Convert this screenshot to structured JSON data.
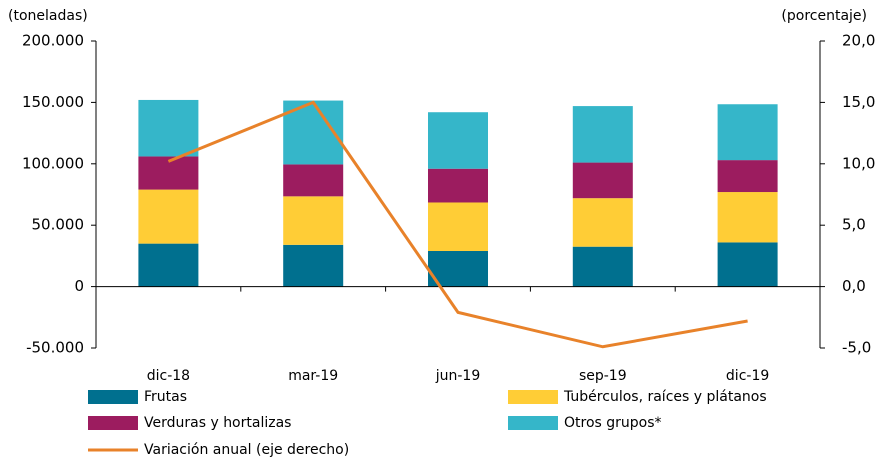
{
  "chart_data": {
    "type": "bar",
    "stacked": true,
    "y_label": "(toneladas)",
    "y2_label": "(porcentaje)",
    "categories": [
      "dic-18",
      "mar-19",
      "jun-19",
      "sep-19",
      "dic-19"
    ],
    "series": [
      {
        "name": "Frutas",
        "color": "#00708f",
        "values": [
          35000,
          34000,
          29000,
          32500,
          36000
        ]
      },
      {
        "name": "Tubérculos, raíces y plátanos",
        "color": "#ffcd36",
        "values": [
          44000,
          39500,
          39500,
          39500,
          41000
        ]
      },
      {
        "name": "Verduras y hortalizas",
        "color": "#9c1c5f",
        "values": [
          27000,
          26000,
          27500,
          29000,
          26000
        ]
      },
      {
        "name": "Otros grupos*",
        "color": "#35b6c9",
        "values": [
          46000,
          52000,
          46000,
          46000,
          45500
        ]
      },
      {
        "name": "Variación anual (eje derecho)",
        "type": "line",
        "axis": "y2",
        "color": "#e8822a",
        "values": [
          10.2,
          15.0,
          -2.1,
          -4.9,
          -2.8
        ]
      }
    ],
    "ylim": [
      -50000,
      200000
    ],
    "yticks": [
      {
        "value": -50000,
        "label": "-50.000"
      },
      0,
      {
        "value": 50000,
        "label": "50.000"
      },
      {
        "value": 100000,
        "label": "100.000"
      },
      {
        "value": 150000,
        "label": "150.000"
      },
      {
        "value": 200000,
        "label": "200.000"
      }
    ],
    "y2lim": [
      -5,
      20
    ],
    "y2ticks": [
      {
        "value": -5,
        "label": "-5,0"
      },
      {
        "value": 0,
        "label": "0,0"
      },
      {
        "value": 5,
        "label": "5,0"
      },
      {
        "value": 10,
        "label": "10,0"
      },
      {
        "value": 15,
        "label": "15,0"
      },
      {
        "value": 20,
        "label": "20,0"
      }
    ]
  }
}
